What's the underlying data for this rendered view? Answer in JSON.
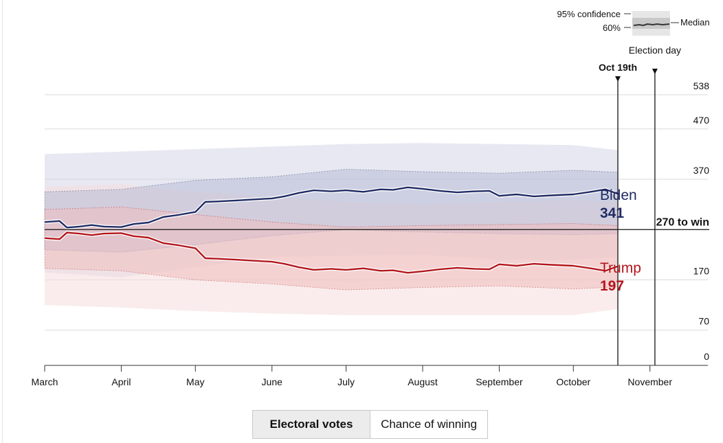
{
  "legend": {
    "confidence_label": "95% confidence",
    "band60_label": "60%",
    "median_label": "Median"
  },
  "chart_data": {
    "type": "line",
    "x_axis": {
      "type": "date",
      "min": "2020-03-01",
      "max": "2020-11-25",
      "ticks": [
        {
          "date": "2020-03-01",
          "label": "March"
        },
        {
          "date": "2020-04-01",
          "label": "April"
        },
        {
          "date": "2020-05-01",
          "label": "May"
        },
        {
          "date": "2020-06-01",
          "label": "June"
        },
        {
          "date": "2020-07-01",
          "label": "July"
        },
        {
          "date": "2020-08-01",
          "label": "August"
        },
        {
          "date": "2020-09-01",
          "label": "September"
        },
        {
          "date": "2020-10-01",
          "label": "October"
        },
        {
          "date": "2020-11-01",
          "label": "November"
        }
      ]
    },
    "y_axis": {
      "min": 0,
      "max": 538,
      "ticks": [
        0,
        70,
        170,
        370,
        470,
        538
      ],
      "position": "right"
    },
    "threshold": {
      "value": 270,
      "label": "270 to win"
    },
    "markers": [
      {
        "date": "2020-10-19",
        "label": "Oct 19th"
      },
      {
        "date": "2020-11-03",
        "label": "Election day"
      }
    ],
    "series": [
      {
        "name": "Biden",
        "value_label": "341",
        "color": "#1f2b63",
        "band95_color": "#d4d6e6",
        "band60_color": "#b8bcd6",
        "median": [
          [
            "2020-03-01",
            285
          ],
          [
            "2020-03-07",
            287
          ],
          [
            "2020-03-10",
            274
          ],
          [
            "2020-03-15",
            276
          ],
          [
            "2020-03-20",
            279
          ],
          [
            "2020-03-25",
            276
          ],
          [
            "2020-04-01",
            275
          ],
          [
            "2020-04-06",
            281
          ],
          [
            "2020-04-12",
            284
          ],
          [
            "2020-04-18",
            295
          ],
          [
            "2020-04-24",
            299
          ],
          [
            "2020-05-01",
            305
          ],
          [
            "2020-05-05",
            325
          ],
          [
            "2020-05-10",
            326
          ],
          [
            "2020-05-18",
            328
          ],
          [
            "2020-05-25",
            330
          ],
          [
            "2020-06-01",
            332
          ],
          [
            "2020-06-06",
            336
          ],
          [
            "2020-06-12",
            343
          ],
          [
            "2020-06-18",
            348
          ],
          [
            "2020-06-25",
            346
          ],
          [
            "2020-07-01",
            348
          ],
          [
            "2020-07-08",
            345
          ],
          [
            "2020-07-15",
            350
          ],
          [
            "2020-07-20",
            349
          ],
          [
            "2020-07-26",
            354
          ],
          [
            "2020-08-01",
            351
          ],
          [
            "2020-08-08",
            347
          ],
          [
            "2020-08-15",
            344
          ],
          [
            "2020-08-22",
            346
          ],
          [
            "2020-08-28",
            347
          ],
          [
            "2020-09-01",
            337
          ],
          [
            "2020-09-08",
            340
          ],
          [
            "2020-09-15",
            336
          ],
          [
            "2020-09-22",
            338
          ],
          [
            "2020-10-01",
            340
          ],
          [
            "2020-10-08",
            345
          ],
          [
            "2020-10-14",
            350
          ],
          [
            "2020-10-19",
            341
          ]
        ],
        "band60": [
          [
            "2020-03-01",
            230,
            345
          ],
          [
            "2020-04-01",
            225,
            350
          ],
          [
            "2020-05-01",
            240,
            368
          ],
          [
            "2020-06-01",
            258,
            375
          ],
          [
            "2020-07-01",
            270,
            390
          ],
          [
            "2020-08-01",
            265,
            385
          ],
          [
            "2020-09-01",
            262,
            382
          ],
          [
            "2020-10-01",
            260,
            388
          ],
          [
            "2020-10-19",
            262,
            384
          ]
        ],
        "band95": [
          [
            "2020-03-01",
            185,
            420
          ],
          [
            "2020-04-01",
            175,
            425
          ],
          [
            "2020-05-01",
            195,
            430
          ],
          [
            "2020-06-01",
            215,
            435
          ],
          [
            "2020-07-01",
            218,
            440
          ],
          [
            "2020-08-01",
            220,
            442
          ],
          [
            "2020-09-01",
            210,
            440
          ],
          [
            "2020-10-01",
            210,
            438
          ],
          [
            "2020-10-19",
            215,
            428
          ]
        ]
      },
      {
        "name": "Trump",
        "value_label": "197",
        "color": "#b3161b",
        "band95_color": "#f6dcdc",
        "band60_color": "#efbdbd",
        "median": [
          [
            "2020-03-01",
            253
          ],
          [
            "2020-03-07",
            251
          ],
          [
            "2020-03-10",
            264
          ],
          [
            "2020-03-15",
            262
          ],
          [
            "2020-03-20",
            259
          ],
          [
            "2020-03-25",
            262
          ],
          [
            "2020-04-01",
            263
          ],
          [
            "2020-04-06",
            257
          ],
          [
            "2020-04-12",
            254
          ],
          [
            "2020-04-18",
            243
          ],
          [
            "2020-04-24",
            239
          ],
          [
            "2020-05-01",
            233
          ],
          [
            "2020-05-05",
            213
          ],
          [
            "2020-05-10",
            212
          ],
          [
            "2020-05-18",
            210
          ],
          [
            "2020-05-25",
            208
          ],
          [
            "2020-06-01",
            206
          ],
          [
            "2020-06-06",
            202
          ],
          [
            "2020-06-12",
            195
          ],
          [
            "2020-06-18",
            190
          ],
          [
            "2020-06-25",
            192
          ],
          [
            "2020-07-01",
            190
          ],
          [
            "2020-07-08",
            193
          ],
          [
            "2020-07-15",
            188
          ],
          [
            "2020-07-20",
            189
          ],
          [
            "2020-07-26",
            184
          ],
          [
            "2020-08-01",
            187
          ],
          [
            "2020-08-08",
            191
          ],
          [
            "2020-08-15",
            194
          ],
          [
            "2020-08-22",
            192
          ],
          [
            "2020-08-28",
            191
          ],
          [
            "2020-09-01",
            201
          ],
          [
            "2020-09-08",
            198
          ],
          [
            "2020-09-15",
            202
          ],
          [
            "2020-09-22",
            200
          ],
          [
            "2020-10-01",
            198
          ],
          [
            "2020-10-08",
            193
          ],
          [
            "2020-10-14",
            188
          ],
          [
            "2020-10-19",
            197
          ]
        ],
        "band60": [
          [
            "2020-03-01",
            193,
            310
          ],
          [
            "2020-04-01",
            188,
            315
          ],
          [
            "2020-05-01",
            170,
            300
          ],
          [
            "2020-06-01",
            162,
            285
          ],
          [
            "2020-07-01",
            150,
            275
          ],
          [
            "2020-08-01",
            155,
            278
          ],
          [
            "2020-09-01",
            158,
            280
          ],
          [
            "2020-10-01",
            152,
            282
          ],
          [
            "2020-10-19",
            156,
            278
          ]
        ],
        "band95": [
          [
            "2020-03-01",
            120,
            355
          ],
          [
            "2020-04-01",
            115,
            360
          ],
          [
            "2020-05-01",
            108,
            345
          ],
          [
            "2020-06-01",
            103,
            335
          ],
          [
            "2020-07-01",
            100,
            325
          ],
          [
            "2020-08-01",
            100,
            320
          ],
          [
            "2020-09-01",
            100,
            325
          ],
          [
            "2020-10-01",
            100,
            328
          ],
          [
            "2020-10-19",
            112,
            325
          ]
        ]
      }
    ]
  },
  "tabs": [
    {
      "label": "Electoral votes",
      "active": true
    },
    {
      "label": "Chance of winning",
      "active": false
    }
  ]
}
